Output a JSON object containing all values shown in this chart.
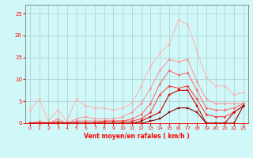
{
  "x": [
    0,
    1,
    2,
    3,
    4,
    5,
    6,
    7,
    8,
    9,
    10,
    11,
    12,
    13,
    14,
    15,
    16,
    17,
    18,
    19,
    20,
    21,
    22,
    23
  ],
  "series": [
    {
      "name": "lightest_pink_1",
      "color": "#FFB0B0",
      "linewidth": 0.7,
      "marker": "D",
      "markersize": 1.5,
      "values": [
        3.0,
        5.5,
        0.5,
        3.0,
        0.5,
        5.5,
        4.0,
        3.5,
        3.5,
        3.0,
        3.5,
        4.5,
        8.5,
        13.0,
        16.0,
        18.0,
        23.5,
        22.5,
        16.5,
        10.5,
        8.5,
        8.5,
        6.5,
        7.0
      ]
    },
    {
      "name": "light_pink_2",
      "color": "#FF9090",
      "linewidth": 0.7,
      "marker": "D",
      "markersize": 1.5,
      "values": [
        0.0,
        0.5,
        0.0,
        1.0,
        0.0,
        1.0,
        1.5,
        1.0,
        1.0,
        1.0,
        1.5,
        2.5,
        4.5,
        8.0,
        12.0,
        14.5,
        14.0,
        14.5,
        9.5,
        5.5,
        4.5,
        4.5,
        4.5,
        4.5
      ]
    },
    {
      "name": "medium_pink_3",
      "color": "#FF6060",
      "linewidth": 0.7,
      "marker": "D",
      "markersize": 1.5,
      "values": [
        0.0,
        0.0,
        0.0,
        0.5,
        0.0,
        0.5,
        0.5,
        0.5,
        0.5,
        0.5,
        0.5,
        1.0,
        2.0,
        4.5,
        9.0,
        12.0,
        11.0,
        11.5,
        7.5,
        3.5,
        3.0,
        3.0,
        3.5,
        4.5
      ]
    },
    {
      "name": "medium_red_4",
      "color": "#FF3030",
      "linewidth": 0.7,
      "marker": "D",
      "markersize": 1.5,
      "values": [
        0.0,
        0.0,
        0.0,
        0.0,
        0.0,
        0.0,
        0.0,
        0.0,
        0.5,
        0.5,
        0.5,
        0.5,
        1.0,
        2.5,
        6.5,
        8.5,
        8.0,
        8.5,
        5.5,
        2.0,
        1.5,
        1.5,
        2.5,
        4.0
      ]
    },
    {
      "name": "dark_red_5",
      "color": "#CC0000",
      "linewidth": 0.8,
      "marker": "s",
      "markersize": 2.0,
      "values": [
        0.0,
        0.0,
        0.0,
        0.0,
        0.0,
        0.0,
        0.0,
        0.0,
        0.0,
        0.0,
        0.0,
        0.0,
        0.5,
        1.5,
        2.5,
        6.5,
        7.5,
        7.5,
        4.0,
        0.0,
        0.0,
        0.0,
        2.5,
        4.0
      ]
    },
    {
      "name": "darkest_red_6",
      "color": "#880000",
      "linewidth": 0.8,
      "marker": "s",
      "markersize": 2.0,
      "values": [
        0.0,
        0.0,
        0.0,
        0.0,
        0.0,
        0.0,
        0.0,
        0.0,
        0.0,
        0.0,
        0.0,
        0.0,
        0.0,
        0.5,
        1.0,
        2.5,
        3.5,
        3.5,
        2.5,
        0.0,
        0.0,
        0.0,
        0.0,
        4.0
      ]
    }
  ],
  "xlabel": "Vent moyen/en rafales ( km/h )",
  "ylim": [
    0,
    27
  ],
  "xlim": [
    -0.5,
    23.5
  ],
  "yticks": [
    0,
    5,
    10,
    15,
    20,
    25
  ],
  "xticks": [
    0,
    1,
    2,
    3,
    4,
    5,
    6,
    7,
    8,
    9,
    10,
    11,
    12,
    13,
    14,
    15,
    16,
    17,
    18,
    19,
    20,
    21,
    22,
    23
  ],
  "bg_color": "#D0F8F8",
  "grid_color": "#AACCCC",
  "tick_label_color": "#FF0000",
  "xlabel_color": "#FF0000",
  "spine_color": "#888888"
}
